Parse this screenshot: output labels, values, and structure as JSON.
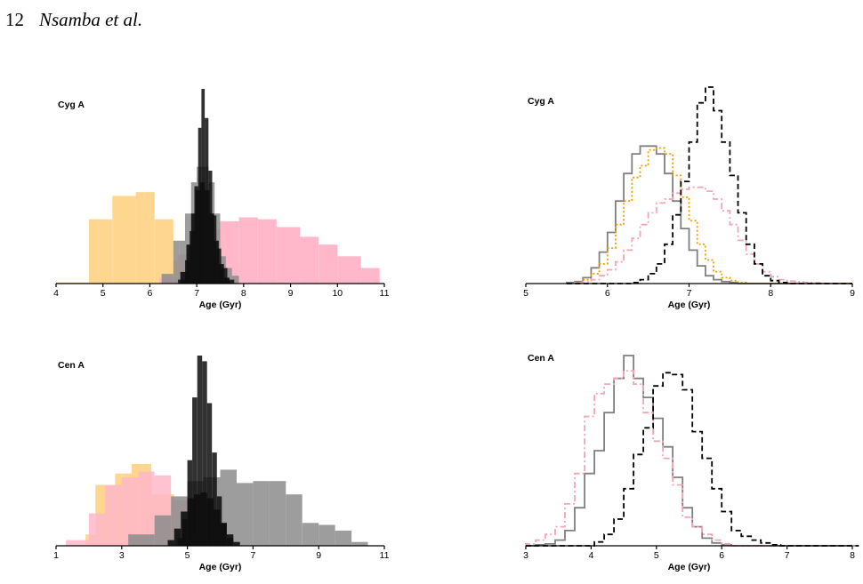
{
  "header": {
    "page_number": "12",
    "authors": "Nsamba et al."
  },
  "colors": {
    "orange": "#ffd68f",
    "pink": "#ffb7c9",
    "gray": "#8c8c8c",
    "black": "#0d0d0d",
    "line_gray": "#808080",
    "line_black": "#000000",
    "line_orange": "#f0a000",
    "line_pink": "#f4a6b6"
  },
  "chart_data": [
    {
      "type": "bar",
      "style": "filled-histogram",
      "title": "Cyg A",
      "xlabel": "Age (Gyr)",
      "xlim": [
        4,
        11
      ],
      "ticks": [
        4,
        5,
        6,
        7,
        8,
        9,
        10,
        11
      ],
      "series": [
        {
          "color": "orange",
          "opacity": 1,
          "bins": [
            [
              4.0,
              4.7,
              0.005
            ],
            [
              4.7,
              5.2,
              0.33
            ],
            [
              5.2,
              5.7,
              0.45
            ],
            [
              5.7,
              6.1,
              0.47
            ],
            [
              6.1,
              6.5,
              0.33
            ],
            [
              6.5,
              7.0,
              0.12
            ],
            [
              7.0,
              7.5,
              0.02
            ]
          ]
        },
        {
          "color": "pink",
          "opacity": 1,
          "bins": [
            [
              6.2,
              6.6,
              0.03
            ],
            [
              6.6,
              7.0,
              0.15
            ],
            [
              7.0,
              7.5,
              0.28
            ],
            [
              7.5,
              7.9,
              0.32
            ],
            [
              7.9,
              8.3,
              0.34
            ],
            [
              8.3,
              8.7,
              0.33
            ],
            [
              8.7,
              9.2,
              0.29
            ],
            [
              9.2,
              9.6,
              0.24
            ],
            [
              9.6,
              10.0,
              0.2
            ],
            [
              10.0,
              10.5,
              0.14
            ],
            [
              10.5,
              10.9,
              0.08
            ]
          ]
        },
        {
          "color": "gray",
          "opacity": 0.85,
          "bins": [
            [
              6.25,
              6.5,
              0.05
            ],
            [
              6.5,
              6.62,
              0.22
            ],
            [
              6.62,
              6.75,
              0.22
            ],
            [
              6.75,
              6.88,
              0.36
            ],
            [
              6.88,
              7.0,
              0.52
            ],
            [
              7.0,
              7.12,
              0.6
            ],
            [
              7.12,
              7.25,
              0.6
            ],
            [
              7.25,
              7.38,
              0.52
            ],
            [
              7.38,
              7.5,
              0.36
            ],
            [
              7.5,
              7.62,
              0.14
            ],
            [
              7.62,
              7.75,
              0.08
            ],
            [
              7.75,
              7.9,
              0.04
            ]
          ]
        },
        {
          "color": "black",
          "opacity": 0.85,
          "bins": [
            [
              6.6,
              6.75,
              0.02
            ],
            [
              6.75,
              6.85,
              0.12
            ],
            [
              6.85,
              6.95,
              0.27
            ],
            [
              6.95,
              7.03,
              0.5
            ],
            [
              7.03,
              7.1,
              0.8
            ],
            [
              7.1,
              7.17,
              1.0
            ],
            [
              7.17,
              7.25,
              0.85
            ],
            [
              7.25,
              7.33,
              0.58
            ],
            [
              7.33,
              7.42,
              0.35
            ],
            [
              7.42,
              7.52,
              0.18
            ],
            [
              7.52,
              7.65,
              0.08
            ],
            [
              7.65,
              7.8,
              0.02
            ]
          ]
        },
        {
          "color": "black",
          "opacity": 0.9,
          "bins": [
            [
              6.65,
              6.78,
              0.06
            ],
            [
              6.78,
              6.88,
              0.2
            ],
            [
              6.88,
              6.97,
              0.36
            ],
            [
              6.97,
              7.07,
              0.48
            ],
            [
              7.07,
              7.17,
              0.52
            ],
            [
              7.17,
              7.27,
              0.48
            ],
            [
              7.27,
              7.37,
              0.36
            ],
            [
              7.37,
              7.47,
              0.22
            ],
            [
              7.47,
              7.58,
              0.1
            ],
            [
              7.58,
              7.7,
              0.03
            ]
          ]
        }
      ]
    },
    {
      "type": "line",
      "style": "step-histogram",
      "title": "Cyg A",
      "xlabel": "Age (Gyr)",
      "xlim": [
        5,
        9
      ],
      "ticks": [
        5,
        6,
        7,
        8,
        9
      ],
      "series": [
        {
          "color": "line_gray",
          "dash": "solid",
          "x0": 5.5,
          "dx": 0.1,
          "y": [
            0.005,
            0.01,
            0.03,
            0.08,
            0.16,
            0.26,
            0.42,
            0.56,
            0.66,
            0.7,
            0.7,
            0.66,
            0.56,
            0.42,
            0.28,
            0.17,
            0.09,
            0.04,
            0.02,
            0.01,
            0.005,
            0.0,
            0.0,
            0.0,
            0.0,
            0.0,
            0.0,
            0.0,
            0.0,
            0.0,
            0.0,
            0.0,
            0.0,
            0.0,
            0.0
          ]
        },
        {
          "color": "line_orange",
          "dash": "dot",
          "x0": 5.5,
          "dx": 0.1,
          "y": [
            0.0,
            0.005,
            0.02,
            0.05,
            0.1,
            0.18,
            0.3,
            0.42,
            0.54,
            0.6,
            0.68,
            0.69,
            0.66,
            0.55,
            0.44,
            0.32,
            0.2,
            0.12,
            0.06,
            0.03,
            0.015,
            0.005,
            0.0,
            0.0,
            0.0,
            0.0,
            0.0,
            0.0,
            0.0,
            0.0,
            0.0,
            0.0,
            0.0,
            0.0,
            0.0
          ]
        },
        {
          "color": "line_pink",
          "dash": "dashdot",
          "x0": 5.5,
          "dx": 0.1,
          "y": [
            0.0,
            0.005,
            0.01,
            0.02,
            0.04,
            0.07,
            0.11,
            0.17,
            0.23,
            0.3,
            0.36,
            0.41,
            0.43,
            0.46,
            0.48,
            0.49,
            0.49,
            0.47,
            0.43,
            0.37,
            0.3,
            0.22,
            0.15,
            0.1,
            0.06,
            0.035,
            0.02,
            0.012,
            0.008,
            0.005,
            0.003,
            0.0,
            0.0,
            0.0,
            0.0
          ]
        },
        {
          "color": "line_black",
          "dash": "dash",
          "x0": 5.5,
          "dx": 0.1,
          "y": [
            0.0,
            0.0,
            0.0,
            0.0,
            0.0,
            0.0,
            0.0,
            0.0,
            0.005,
            0.02,
            0.05,
            0.1,
            0.2,
            0.35,
            0.52,
            0.72,
            0.92,
            1.0,
            0.88,
            0.72,
            0.55,
            0.36,
            0.2,
            0.1,
            0.04,
            0.015,
            0.005,
            0.0,
            0.0,
            0.0,
            0.0,
            0.0,
            0.0,
            0.0,
            0.0
          ]
        }
      ]
    },
    {
      "type": "bar",
      "style": "filled-histogram",
      "title": "Cen A",
      "xlabel": "Age (Gyr)",
      "xlim": [
        1,
        11
      ],
      "ticks": [
        1,
        3,
        5,
        7,
        9,
        11
      ],
      "series": [
        {
          "color": "orange",
          "opacity": 1,
          "bins": [
            [
              1.9,
              2.2,
              0.06
            ],
            [
              2.2,
              2.8,
              0.32
            ],
            [
              2.8,
              3.3,
              0.38
            ],
            [
              3.3,
              3.9,
              0.43
            ],
            [
              3.9,
              4.6,
              0.27
            ],
            [
              4.6,
              5.1,
              0.06
            ]
          ]
        },
        {
          "color": "pink",
          "opacity": 0.85,
          "bins": [
            [
              1.3,
              2.0,
              0.03
            ],
            [
              2.0,
              2.5,
              0.17
            ],
            [
              2.5,
              3.0,
              0.32
            ],
            [
              3.0,
              3.5,
              0.36
            ],
            [
              3.5,
              4.0,
              0.39
            ],
            [
              4.0,
              4.5,
              0.37
            ],
            [
              4.5,
              5.0,
              0.24
            ],
            [
              5.0,
              5.5,
              0.08
            ],
            [
              5.5,
              6.0,
              0.02
            ]
          ]
        },
        {
          "color": "gray",
          "opacity": 0.85,
          "bins": [
            [
              3.2,
              4.0,
              0.06
            ],
            [
              4.0,
              4.5,
              0.16
            ],
            [
              4.5,
              5.0,
              0.26
            ],
            [
              5.0,
              5.5,
              0.34
            ],
            [
              5.5,
              6.0,
              0.36
            ],
            [
              6.0,
              6.5,
              0.4
            ],
            [
              6.5,
              7.0,
              0.33
            ],
            [
              7.0,
              7.5,
              0.34
            ],
            [
              7.5,
              8.0,
              0.34
            ],
            [
              8.0,
              8.5,
              0.27
            ],
            [
              8.5,
              9.0,
              0.12
            ],
            [
              9.0,
              9.5,
              0.11
            ],
            [
              9.5,
              10.0,
              0.08
            ],
            [
              10.0,
              10.5,
              0.02
            ]
          ]
        },
        {
          "color": "black",
          "opacity": 0.85,
          "bins": [
            [
              4.7,
              4.85,
              0.04
            ],
            [
              4.85,
              5.0,
              0.14
            ],
            [
              5.0,
              5.15,
              0.45
            ],
            [
              5.15,
              5.3,
              0.78
            ],
            [
              5.3,
              5.45,
              1.0
            ],
            [
              5.45,
              5.6,
              0.97
            ],
            [
              5.6,
              5.75,
              0.75
            ],
            [
              5.75,
              5.9,
              0.49
            ],
            [
              5.9,
              6.05,
              0.26
            ],
            [
              6.05,
              6.2,
              0.12
            ],
            [
              6.2,
              6.4,
              0.04
            ]
          ]
        },
        {
          "color": "black",
          "opacity": 0.9,
          "bins": [
            [
              4.4,
              4.6,
              0.03
            ],
            [
              4.6,
              4.8,
              0.09
            ],
            [
              4.8,
              5.0,
              0.18
            ],
            [
              5.0,
              5.2,
              0.25
            ],
            [
              5.2,
              5.4,
              0.27
            ],
            [
              5.4,
              5.6,
              0.28
            ],
            [
              5.6,
              5.8,
              0.25
            ],
            [
              5.8,
              6.0,
              0.19
            ],
            [
              6.0,
              6.2,
              0.12
            ],
            [
              6.2,
              6.4,
              0.06
            ],
            [
              6.4,
              6.6,
              0.02
            ]
          ]
        }
      ]
    },
    {
      "type": "line",
      "style": "step-histogram",
      "title": "Cen A",
      "xlabel": "Age (Gyr)",
      "xlim": [
        3,
        8
      ],
      "ticks": [
        3,
        4,
        5,
        6,
        7,
        8
      ],
      "series": [
        {
          "color": "line_gray",
          "dash": "solid",
          "x0": 3.0,
          "dx": 0.15,
          "y": [
            0.0,
            0.005,
            0.01,
            0.03,
            0.08,
            0.2,
            0.38,
            0.5,
            0.7,
            0.88,
            1.0,
            0.88,
            0.78,
            0.67,
            0.52,
            0.36,
            0.2,
            0.1,
            0.04,
            0.015,
            0.005,
            0.0,
            0.0,
            0.0,
            0.0,
            0.0,
            0.0,
            0.0,
            0.0,
            0.0,
            0.0,
            0.0,
            0.0,
            0.0
          ]
        },
        {
          "color": "line_pink",
          "dash": "dashdot",
          "x0": 3.0,
          "dx": 0.15,
          "y": [
            0.01,
            0.03,
            0.06,
            0.1,
            0.22,
            0.38,
            0.68,
            0.8,
            0.85,
            0.88,
            0.92,
            0.85,
            0.7,
            0.55,
            0.46,
            0.32,
            0.15,
            0.1,
            0.06,
            0.03,
            0.01,
            0.0,
            0.0,
            0.0,
            0.0,
            0.0,
            0.0,
            0.0,
            0.0,
            0.0,
            0.0,
            0.0,
            0.0,
            0.0
          ]
        },
        {
          "color": "line_black",
          "dash": "dash",
          "x0": 3.0,
          "dx": 0.15,
          "y": [
            0.0,
            0.0,
            0.0,
            0.0,
            0.0,
            0.0,
            0.0,
            0.02,
            0.06,
            0.14,
            0.3,
            0.48,
            0.62,
            0.84,
            0.91,
            0.9,
            0.82,
            0.6,
            0.46,
            0.3,
            0.18,
            0.08,
            0.05,
            0.03,
            0.015,
            0.005,
            0.0,
            0.0,
            0.0,
            0.0,
            0.0,
            0.0,
            0.0,
            0.0
          ]
        }
      ]
    }
  ]
}
